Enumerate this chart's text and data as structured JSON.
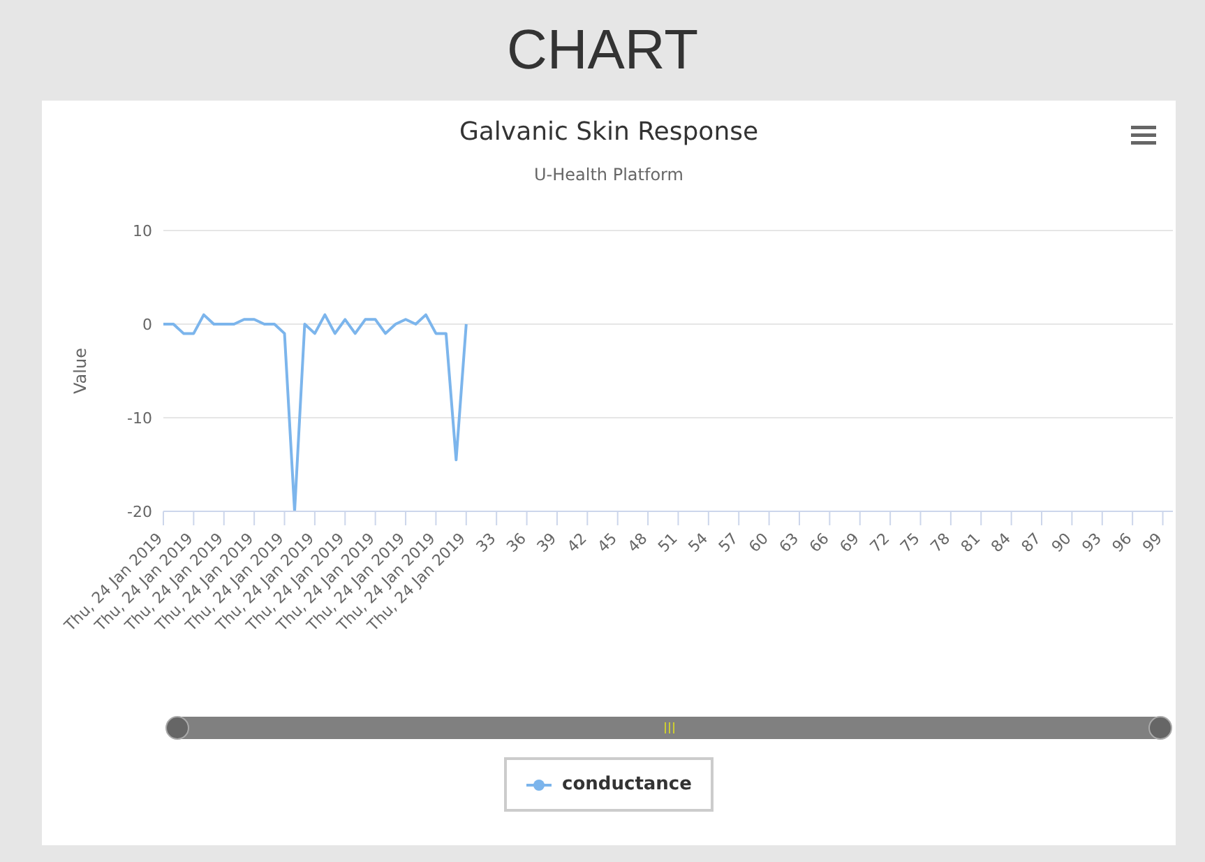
{
  "chart_data": {
    "type": "line",
    "title": "Galvanic Skin Response",
    "subtitle": "U-Health Platform",
    "ylabel": "Value",
    "annotations": [
      "CHART"
    ],
    "categories": [
      "Thu, 24 Jan 2019",
      null,
      null,
      "Thu, 24 Jan 2019",
      null,
      null,
      "Thu, 24 Jan 2019",
      null,
      null,
      "Thu, 24 Jan 2019",
      null,
      null,
      "Thu, 24 Jan 2019",
      null,
      null,
      "Thu, 24 Jan 2019",
      null,
      null,
      "Thu, 24 Jan 2019",
      null,
      null,
      "Thu, 24 Jan 2019",
      null,
      null,
      "Thu, 24 Jan 2019",
      null,
      null,
      "Thu, 24 Jan 2019",
      null,
      null,
      "Thu, 24 Jan 2019",
      null,
      null,
      "33",
      null,
      null,
      "36",
      null,
      null,
      "39",
      null,
      null,
      "42",
      null,
      null,
      "45",
      null,
      null,
      "48",
      null,
      null,
      "51",
      null,
      null,
      "54",
      null,
      null,
      "57",
      null,
      null,
      "60",
      null,
      null,
      "63",
      null,
      null,
      "66",
      null,
      null,
      "69",
      null,
      null,
      "72",
      null,
      null,
      "75",
      null,
      null,
      "78",
      null,
      null,
      "81",
      null,
      null,
      "84",
      null,
      null,
      "87",
      null,
      null,
      "90",
      null,
      null,
      "93",
      null,
      null,
      "96",
      null,
      null,
      "99",
      null
    ],
    "series": [
      {
        "name": "conductance",
        "color": "#7cb5ec",
        "values": [
          0,
          0,
          -1,
          -1,
          1,
          0,
          0,
          0,
          0.5,
          0.5,
          0,
          0,
          -1,
          -20,
          0,
          -1,
          1,
          -1,
          0.5,
          -1,
          0.5,
          0.5,
          -1,
          0,
          0.5,
          0,
          1,
          -1,
          -1,
          -14.5,
          0,
          null,
          null,
          null,
          null,
          null,
          null,
          null,
          null,
          null,
          null,
          null,
          null,
          null,
          null,
          null,
          null,
          null,
          null,
          null,
          null,
          null,
          null,
          null,
          null,
          null,
          null,
          null,
          null,
          null,
          null,
          null,
          null,
          null,
          null,
          null,
          null,
          null,
          null,
          null,
          null,
          null,
          null,
          null,
          null,
          null,
          null,
          null,
          null,
          null,
          null,
          null,
          null,
          null,
          null,
          null,
          null,
          null,
          null,
          null,
          null,
          null,
          null,
          null,
          null,
          null,
          null,
          null,
          null,
          null,
          null
        ]
      }
    ],
    "ylim": [
      -20,
      10
    ],
    "yticks": [
      -20,
      -10,
      0,
      10
    ],
    "grid": "y",
    "legend": "bottom",
    "marker": "none",
    "line_style": "solid"
  }
}
